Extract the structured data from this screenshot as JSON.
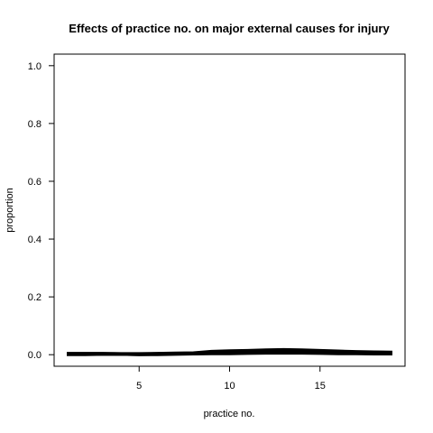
{
  "chart_data": {
    "type": "line",
    "title": "Effects of practice no. on major external causes for injury",
    "xlabel": "practice no.",
    "ylabel": "proportion",
    "xlim": [
      0.3,
      19.7
    ],
    "ylim": [
      -0.04,
      1.04
    ],
    "xticks": [
      5,
      10,
      15
    ],
    "yticks": [
      0.0,
      0.2,
      0.4,
      0.6,
      0.8,
      1.0
    ],
    "ytick_labels": [
      "0.0",
      "0.2",
      "0.4",
      "0.6",
      "0.8",
      "1.0"
    ],
    "grid": false,
    "x": [
      1,
      2,
      3,
      4,
      5,
      6,
      7,
      8,
      9,
      10,
      11,
      12,
      13,
      14,
      15,
      16,
      17,
      18,
      19
    ],
    "series": [
      {
        "values": [
          0.002,
          0.002,
          0.002,
          0.002,
          0.001,
          0.002,
          0.003,
          0.004,
          0.006,
          0.007,
          0.008,
          0.009,
          0.01,
          0.009,
          0.008,
          0.007,
          0.006,
          0.005,
          0.005
        ],
        "color": "#000000"
      },
      {
        "values": [
          0.001,
          0.001,
          0.001,
          0.001,
          0.0,
          0.001,
          0.002,
          0.003,
          0.004,
          0.005,
          0.006,
          0.007,
          0.008,
          0.007,
          0.006,
          0.005,
          0.004,
          0.004,
          0.003
        ],
        "color": "#000000"
      },
      {
        "values": [
          0.003,
          0.003,
          0.003,
          0.002,
          0.002,
          0.003,
          0.004,
          0.005,
          0.008,
          0.01,
          0.011,
          0.012,
          0.013,
          0.012,
          0.011,
          0.009,
          0.008,
          0.007,
          0.006
        ],
        "color": "#000000"
      },
      {
        "values": [
          0.0,
          0.0,
          0.001,
          0.001,
          0.0,
          0.0,
          0.001,
          0.002,
          0.003,
          0.003,
          0.004,
          0.005,
          0.005,
          0.005,
          0.004,
          0.003,
          0.003,
          0.002,
          0.002
        ],
        "color": "#000000"
      },
      {
        "values": [
          0.004,
          0.004,
          0.004,
          0.003,
          0.003,
          0.004,
          0.005,
          0.006,
          0.01,
          0.012,
          0.013,
          0.015,
          0.016,
          0.015,
          0.013,
          0.011,
          0.01,
          0.009,
          0.008
        ],
        "color": "#000000"
      },
      {
        "values": [
          0.002,
          0.001,
          0.002,
          0.001,
          0.001,
          0.002,
          0.002,
          0.003,
          0.005,
          0.006,
          0.007,
          0.008,
          0.009,
          0.008,
          0.007,
          0.006,
          0.005,
          0.004,
          0.004
        ],
        "color": "#000000"
      },
      {
        "values": [
          0.005,
          0.005,
          0.005,
          0.004,
          0.004,
          0.005,
          0.006,
          0.007,
          0.012,
          0.014,
          0.015,
          0.017,
          0.018,
          0.017,
          0.015,
          0.013,
          0.011,
          0.01,
          0.009
        ],
        "color": "#000000"
      }
    ]
  }
}
